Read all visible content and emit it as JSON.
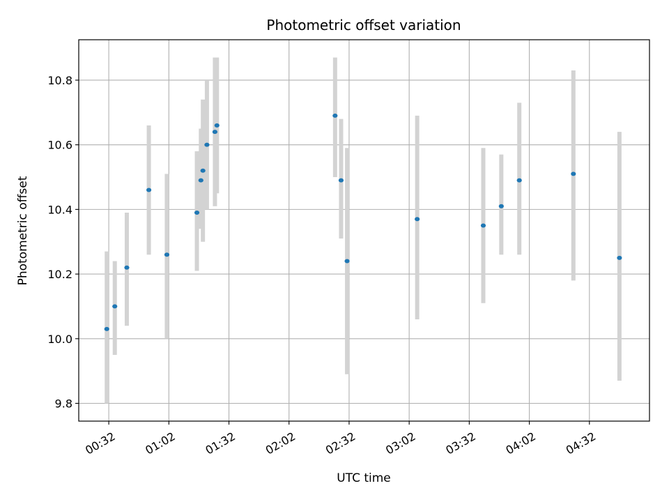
{
  "chart_data": {
    "type": "scatter",
    "title": "Photometric offset variation",
    "xlabel": "UTC time",
    "ylabel": "Photometric offset",
    "ylim": [
      9.745,
      10.925
    ],
    "xlim": [
      "00:17",
      "05:02"
    ],
    "x_ticks": [
      "00:32",
      "01:02",
      "01:32",
      "02:02",
      "02:32",
      "03:02",
      "03:32",
      "04:02",
      "04:32"
    ],
    "y_ticks": [
      9.8,
      10.0,
      10.2,
      10.4,
      10.6,
      10.8
    ],
    "grid": true,
    "legend": "none",
    "marker_color": "#1f77b4",
    "errorbar_color": "#d3d3d3",
    "points": [
      {
        "x": "00:31",
        "y": 10.03,
        "y_low": 9.8,
        "y_high": 10.27
      },
      {
        "x": "00:35",
        "y": 10.1,
        "y_low": 9.95,
        "y_high": 10.24
      },
      {
        "x": "00:41",
        "y": 10.22,
        "y_low": 10.04,
        "y_high": 10.39
      },
      {
        "x": "00:52",
        "y": 10.46,
        "y_low": 10.26,
        "y_high": 10.66
      },
      {
        "x": "01:01",
        "y": 10.26,
        "y_low": 10.0,
        "y_high": 10.51
      },
      {
        "x": "01:16",
        "y": 10.39,
        "y_low": 10.21,
        "y_high": 10.58
      },
      {
        "x": "01:18",
        "y": 10.49,
        "y_low": 10.34,
        "y_high": 10.65
      },
      {
        "x": "01:19",
        "y": 10.52,
        "y_low": 10.3,
        "y_high": 10.74
      },
      {
        "x": "01:21",
        "y": 10.6,
        "y_low": 10.4,
        "y_high": 10.8
      },
      {
        "x": "01:25",
        "y": 10.64,
        "y_low": 10.41,
        "y_high": 10.87
      },
      {
        "x": "01:26",
        "y": 10.66,
        "y_low": 10.45,
        "y_high": 10.87
      },
      {
        "x": "02:25",
        "y": 10.69,
        "y_low": 10.5,
        "y_high": 10.87
      },
      {
        "x": "02:28",
        "y": 10.49,
        "y_low": 10.31,
        "y_high": 10.68
      },
      {
        "x": "02:31",
        "y": 10.24,
        "y_low": 9.89,
        "y_high": 10.59
      },
      {
        "x": "03:06",
        "y": 10.37,
        "y_low": 10.06,
        "y_high": 10.69
      },
      {
        "x": "03:39",
        "y": 10.35,
        "y_low": 10.11,
        "y_high": 10.59
      },
      {
        "x": "03:48",
        "y": 10.41,
        "y_low": 10.26,
        "y_high": 10.57
      },
      {
        "x": "03:57",
        "y": 10.49,
        "y_low": 10.26,
        "y_high": 10.73
      },
      {
        "x": "04:24",
        "y": 10.51,
        "y_low": 10.18,
        "y_high": 10.83
      },
      {
        "x": "04:47",
        "y": 10.25,
        "y_low": 9.87,
        "y_high": 10.64
      }
    ]
  }
}
